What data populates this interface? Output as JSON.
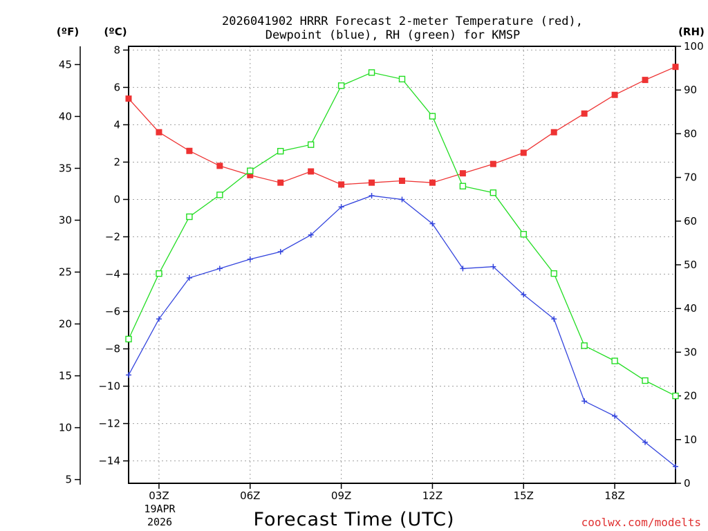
{
  "chart_data": {
    "type": "line",
    "title_line1": "2026041902 HRRR Forecast 2-meter Temperature (red),",
    "title_line2": "Dewpoint (blue), RH (green) for KMSP",
    "xlabel": "Forecast Time (UTC)",
    "credit": "coolwx.com/modelts",
    "date_line1": "19APR",
    "date_line2": "2026",
    "unit_labels": {
      "fahrenheit": "(ºF)",
      "celsius": "(ºC)",
      "rh": "(RH)"
    },
    "colors": {
      "temperature": "#ee3333",
      "dewpoint": "#3344dd",
      "rh": "#22dd22"
    },
    "x_range_hours": [
      2,
      20
    ],
    "x_ticks": [
      {
        "hour": 3,
        "label": "03Z"
      },
      {
        "hour": 6,
        "label": "06Z"
      },
      {
        "hour": 9,
        "label": "09Z"
      },
      {
        "hour": 12,
        "label": "12Z"
      },
      {
        "hour": 15,
        "label": "15Z"
      },
      {
        "hour": 18,
        "label": "18Z"
      }
    ],
    "celsius_axis": {
      "range": [
        -15.2,
        8.2
      ],
      "ticks": [
        8,
        6,
        4,
        2,
        0,
        -2,
        -4,
        -6,
        -8,
        -10,
        -12,
        -14
      ]
    },
    "fahrenheit_ticks": [
      45,
      40,
      35,
      30,
      25,
      20,
      15,
      10,
      5
    ],
    "rh_axis": {
      "range": [
        0,
        100
      ],
      "ticks": [
        100,
        90,
        80,
        70,
        60,
        50,
        40,
        30,
        20,
        10,
        0
      ]
    },
    "hours": [
      2,
      3,
      4,
      5,
      6,
      7,
      8,
      9,
      10,
      11,
      12,
      13,
      14,
      15,
      16,
      17,
      18,
      19,
      20
    ],
    "series": [
      {
        "name": "Temperature (°C)",
        "axis": "celsius",
        "marker": "filled-square",
        "values": [
          5.4,
          3.6,
          2.6,
          1.8,
          1.3,
          0.9,
          1.5,
          0.8,
          0.9,
          1.0,
          0.9,
          1.4,
          1.9,
          2.5,
          3.6,
          4.6,
          5.6,
          6.4,
          7.1
        ]
      },
      {
        "name": "Dewpoint (°C)",
        "axis": "celsius",
        "marker": "plus",
        "values": [
          -9.4,
          -6.4,
          -4.2,
          -3.7,
          -3.2,
          -2.8,
          -1.9,
          -0.4,
          0.2,
          0.0,
          -1.3,
          -3.7,
          -3.6,
          -5.1,
          -6.4,
          -10.8,
          -11.6,
          -13.0,
          -14.3
        ]
      },
      {
        "name": "RH (%)",
        "axis": "rh",
        "marker": "open-square",
        "values": [
          33,
          48,
          61,
          66,
          71.5,
          76,
          77.5,
          91,
          94,
          92.5,
          84,
          68,
          66.5,
          57,
          48,
          31.5,
          28,
          23.5,
          20
        ]
      }
    ]
  }
}
